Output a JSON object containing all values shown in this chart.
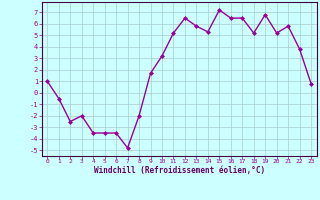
{
  "x": [
    0,
    1,
    2,
    3,
    4,
    5,
    6,
    7,
    8,
    9,
    10,
    11,
    12,
    13,
    14,
    15,
    16,
    17,
    18,
    19,
    20,
    21,
    22,
    23
  ],
  "y": [
    1.0,
    -0.5,
    -2.5,
    -2.0,
    -3.5,
    -3.5,
    -3.5,
    -4.8,
    -2.0,
    1.7,
    3.2,
    5.2,
    6.5,
    5.8,
    5.3,
    7.2,
    6.5,
    6.5,
    5.2,
    6.8,
    5.2,
    5.8,
    3.8,
    0.8
  ],
  "line_color": "#990099",
  "marker": "D",
  "marker_size": 2,
  "bg_color": "#ccffff",
  "grid_color": "#aacccc",
  "xlabel": "Windchill (Refroidissement éolien,°C)",
  "xlabel_color": "#660066",
  "tick_color": "#990099",
  "ylim": [
    -5.5,
    7.9
  ],
  "xlim": [
    -0.5,
    23.5
  ],
  "yticks": [
    -5,
    -4,
    -3,
    -2,
    -1,
    0,
    1,
    2,
    3,
    4,
    5,
    6,
    7
  ],
  "xticks": [
    0,
    1,
    2,
    3,
    4,
    5,
    6,
    7,
    8,
    9,
    10,
    11,
    12,
    13,
    14,
    15,
    16,
    17,
    18,
    19,
    20,
    21,
    22,
    23
  ],
  "axis_color": "#440044",
  "linewidth": 1.0
}
